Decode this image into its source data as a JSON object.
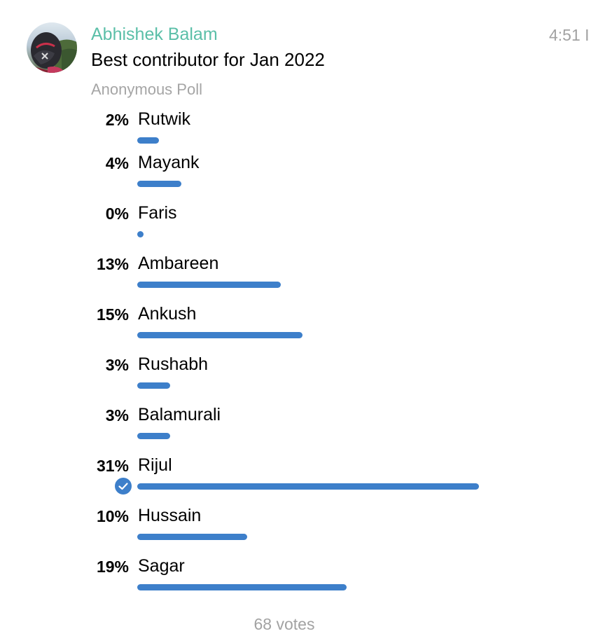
{
  "colors": {
    "sender": "#5bbfa8",
    "bar": "#3d7fca",
    "check": "#3d7fca",
    "muted": "#a2a2a2"
  },
  "message": {
    "sender": "Abhishek Balam",
    "timestamp": "4:51 I",
    "question": "Best contributor for Jan 2022",
    "poll_type": "Anonymous Poll",
    "total_votes": "68 votes"
  },
  "poll": {
    "options": [
      {
        "percent": "2%",
        "value": 2,
        "label": "Rutwik",
        "chosen": false
      },
      {
        "percent": "4%",
        "value": 4,
        "label": "Mayank",
        "chosen": false
      },
      {
        "percent": "0%",
        "value": 0,
        "label": "Faris",
        "chosen": false
      },
      {
        "percent": "13%",
        "value": 13,
        "label": "Ambareen",
        "chosen": false
      },
      {
        "percent": "15%",
        "value": 15,
        "label": "Ankush",
        "chosen": false
      },
      {
        "percent": "3%",
        "value": 3,
        "label": "Rushabh",
        "chosen": false
      },
      {
        "percent": "3%",
        "value": 3,
        "label": "Balamurali",
        "chosen": false
      },
      {
        "percent": "31%",
        "value": 31,
        "label": "Rijul",
        "chosen": true
      },
      {
        "percent": "10%",
        "value": 10,
        "label": "Hussain",
        "chosen": false
      },
      {
        "percent": "19%",
        "value": 19,
        "label": "Sagar",
        "chosen": false
      }
    ]
  },
  "icons": {
    "avatar": "avatar-photo",
    "check": "checkmark-icon"
  }
}
